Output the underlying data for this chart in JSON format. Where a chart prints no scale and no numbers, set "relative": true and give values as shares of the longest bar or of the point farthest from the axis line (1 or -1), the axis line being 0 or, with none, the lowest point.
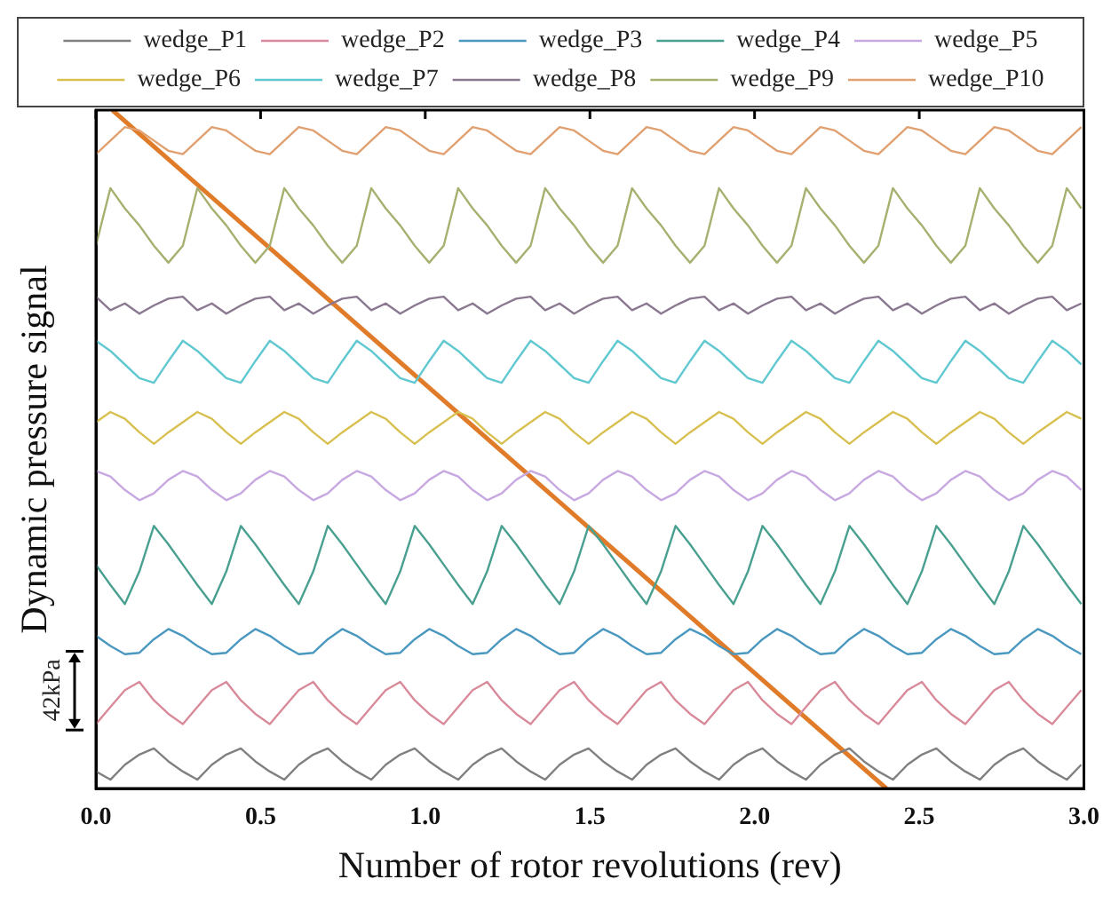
{
  "chart_data": {
    "type": "line",
    "relative": true,
    "xlabel": "Number of rotor revolutions (rev)",
    "ylabel": "Dynamic pressure signal",
    "annotations": [
      "42kPa"
    ],
    "legend": "top",
    "grid": false,
    "marker": "none",
    "line_style": "solid",
    "xlim": [
      0,
      3
    ],
    "xticks": [
      {
        "value": 0,
        "label": "0.0"
      },
      {
        "value": 0.5,
        "label": "0.5"
      },
      {
        "value": 1,
        "label": "1.0"
      },
      {
        "value": 1.5,
        "label": "1.5"
      },
      {
        "value": 2,
        "label": "2.0"
      },
      {
        "value": 2.5,
        "label": "2.5"
      },
      {
        "value": 3,
        "label": "3.0"
      }
    ],
    "x": [
      0,
      0.044,
      0.088,
      0.132,
      0.176,
      0.22,
      0.264,
      0.308,
      0.352,
      0.396,
      0.44,
      0.484,
      0.528,
      0.572,
      0.616,
      0.66,
      0.704,
      0.748,
      0.792,
      0.836,
      0.88,
      0.924,
      0.968,
      1.012,
      1.056,
      1.1,
      1.144,
      1.188,
      1.232,
      1.276,
      1.32,
      1.364,
      1.408,
      1.452,
      1.496,
      1.54,
      1.584,
      1.628,
      1.672,
      1.716,
      1.76,
      1.804,
      1.848,
      1.892,
      1.936,
      1.98,
      2.024,
      2.068,
      2.112,
      2.156,
      2.2,
      2.244,
      2.288,
      2.332,
      2.376,
      2.42,
      2.464,
      2.508,
      2.552,
      2.596,
      2.64,
      2.684,
      2.728,
      2.772,
      2.816,
      2.86,
      2.904,
      2.948,
      2.992
    ],
    "series": [
      {
        "name": "wedge_P1",
        "color": "#808080",
        "values": [
          0.025,
          0.013,
          0.035,
          0.05,
          0.059,
          0.04,
          0.025,
          0.013,
          0.035,
          0.05,
          0.059,
          0.04,
          0.025,
          0.013,
          0.035,
          0.05,
          0.059,
          0.04,
          0.025,
          0.013,
          0.035,
          0.05,
          0.059,
          0.04,
          0.025,
          0.013,
          0.035,
          0.05,
          0.059,
          0.04,
          0.025,
          0.013,
          0.035,
          0.05,
          0.059,
          0.04,
          0.025,
          0.013,
          0.035,
          0.05,
          0.059,
          0.04,
          0.025,
          0.013,
          0.035,
          0.05,
          0.059,
          0.04,
          0.025,
          0.013,
          0.035,
          0.05,
          0.059,
          0.04,
          0.025,
          0.013,
          0.035,
          0.05,
          0.059,
          0.04,
          0.025,
          0.013,
          0.035,
          0.05,
          0.059,
          0.04,
          0.025,
          0.013,
          0.035
        ]
      },
      {
        "name": "wedge_P2",
        "color": "#d98a9a",
        "values": [
          0.095,
          0.12,
          0.145,
          0.157,
          0.13,
          0.11,
          0.095,
          0.12,
          0.145,
          0.157,
          0.13,
          0.11,
          0.095,
          0.12,
          0.145,
          0.157,
          0.13,
          0.11,
          0.095,
          0.12,
          0.145,
          0.157,
          0.13,
          0.11,
          0.095,
          0.12,
          0.145,
          0.157,
          0.13,
          0.11,
          0.095,
          0.12,
          0.145,
          0.157,
          0.13,
          0.11,
          0.095,
          0.12,
          0.145,
          0.157,
          0.13,
          0.11,
          0.095,
          0.12,
          0.145,
          0.157,
          0.13,
          0.11,
          0.095,
          0.12,
          0.145,
          0.157,
          0.13,
          0.11,
          0.095,
          0.12,
          0.145,
          0.157,
          0.13,
          0.11,
          0.095,
          0.12,
          0.145,
          0.157,
          0.13,
          0.11,
          0.095,
          0.12,
          0.145
        ]
      },
      {
        "name": "wedge_P3",
        "color": "#4a98c0",
        "values": [
          0.225,
          0.21,
          0.198,
          0.2,
          0.22,
          0.235,
          0.225,
          0.21,
          0.198,
          0.2,
          0.22,
          0.235,
          0.225,
          0.21,
          0.198,
          0.2,
          0.22,
          0.235,
          0.225,
          0.21,
          0.198,
          0.2,
          0.22,
          0.235,
          0.225,
          0.21,
          0.198,
          0.2,
          0.22,
          0.235,
          0.225,
          0.21,
          0.198,
          0.2,
          0.22,
          0.235,
          0.225,
          0.21,
          0.198,
          0.2,
          0.22,
          0.235,
          0.225,
          0.21,
          0.198,
          0.2,
          0.22,
          0.235,
          0.225,
          0.21,
          0.198,
          0.2,
          0.22,
          0.235,
          0.225,
          0.21,
          0.198,
          0.2,
          0.22,
          0.235,
          0.225,
          0.21,
          0.198,
          0.2,
          0.22,
          0.235,
          0.225,
          0.21,
          0.198
        ]
      },
      {
        "name": "wedge_P4",
        "color": "#4aa090",
        "values": [
          0.33,
          0.3,
          0.272,
          0.32,
          0.387,
          0.36,
          0.33,
          0.3,
          0.272,
          0.32,
          0.387,
          0.36,
          0.33,
          0.3,
          0.272,
          0.32,
          0.387,
          0.36,
          0.33,
          0.3,
          0.272,
          0.32,
          0.387,
          0.36,
          0.33,
          0.3,
          0.272,
          0.32,
          0.387,
          0.36,
          0.33,
          0.3,
          0.272,
          0.32,
          0.387,
          0.36,
          0.33,
          0.3,
          0.272,
          0.32,
          0.387,
          0.36,
          0.33,
          0.3,
          0.272,
          0.32,
          0.387,
          0.36,
          0.33,
          0.3,
          0.272,
          0.32,
          0.387,
          0.36,
          0.33,
          0.3,
          0.272,
          0.32,
          0.387,
          0.36,
          0.33,
          0.3,
          0.272,
          0.32,
          0.387,
          0.36,
          0.33,
          0.3,
          0.272
        ]
      },
      {
        "name": "wedge_P5",
        "color": "#c8a8e0",
        "values": [
          0.468,
          0.46,
          0.44,
          0.425,
          0.435,
          0.455,
          0.468,
          0.46,
          0.44,
          0.425,
          0.435,
          0.455,
          0.468,
          0.46,
          0.44,
          0.425,
          0.435,
          0.455,
          0.468,
          0.46,
          0.44,
          0.425,
          0.435,
          0.455,
          0.468,
          0.46,
          0.44,
          0.425,
          0.435,
          0.455,
          0.468,
          0.46,
          0.44,
          0.425,
          0.435,
          0.455,
          0.468,
          0.46,
          0.44,
          0.425,
          0.435,
          0.455,
          0.468,
          0.46,
          0.44,
          0.425,
          0.435,
          0.455,
          0.468,
          0.46,
          0.44,
          0.425,
          0.435,
          0.455,
          0.468,
          0.46,
          0.44,
          0.425,
          0.435,
          0.455,
          0.468,
          0.46,
          0.44,
          0.425,
          0.435,
          0.455,
          0.468,
          0.46,
          0.44
        ]
      },
      {
        "name": "wedge_P6",
        "color": "#d8c050",
        "values": [
          0.54,
          0.555,
          0.545,
          0.525,
          0.508,
          0.525,
          0.54,
          0.555,
          0.545,
          0.525,
          0.508,
          0.525,
          0.54,
          0.555,
          0.545,
          0.525,
          0.508,
          0.525,
          0.54,
          0.555,
          0.545,
          0.525,
          0.508,
          0.525,
          0.54,
          0.555,
          0.545,
          0.525,
          0.508,
          0.525,
          0.54,
          0.555,
          0.545,
          0.525,
          0.508,
          0.525,
          0.54,
          0.555,
          0.545,
          0.525,
          0.508,
          0.525,
          0.54,
          0.555,
          0.545,
          0.525,
          0.508,
          0.525,
          0.54,
          0.555,
          0.545,
          0.525,
          0.508,
          0.525,
          0.54,
          0.555,
          0.545,
          0.525,
          0.508,
          0.525,
          0.54,
          0.555,
          0.545,
          0.525,
          0.508,
          0.525,
          0.54,
          0.555,
          0.545
        ]
      },
      {
        "name": "wedge_P7",
        "color": "#60c8d0",
        "values": [
          0.66,
          0.645,
          0.625,
          0.605,
          0.598,
          0.63,
          0.66,
          0.645,
          0.625,
          0.605,
          0.598,
          0.63,
          0.66,
          0.645,
          0.625,
          0.605,
          0.598,
          0.63,
          0.66,
          0.645,
          0.625,
          0.605,
          0.598,
          0.63,
          0.66,
          0.645,
          0.625,
          0.605,
          0.598,
          0.63,
          0.66,
          0.645,
          0.625,
          0.605,
          0.598,
          0.63,
          0.66,
          0.645,
          0.625,
          0.605,
          0.598,
          0.63,
          0.66,
          0.645,
          0.625,
          0.605,
          0.598,
          0.63,
          0.66,
          0.645,
          0.625,
          0.605,
          0.598,
          0.63,
          0.66,
          0.645,
          0.625,
          0.605,
          0.598,
          0.63,
          0.66,
          0.645,
          0.625,
          0.605,
          0.598,
          0.63,
          0.66,
          0.645,
          0.625
        ]
      },
      {
        "name": "wedge_P8",
        "color": "#8a7890",
        "values": [
          0.725,
          0.705,
          0.715,
          0.7,
          0.712,
          0.722,
          0.725,
          0.705,
          0.715,
          0.7,
          0.712,
          0.722,
          0.725,
          0.705,
          0.715,
          0.7,
          0.712,
          0.722,
          0.725,
          0.705,
          0.715,
          0.7,
          0.712,
          0.722,
          0.725,
          0.705,
          0.715,
          0.7,
          0.712,
          0.722,
          0.725,
          0.705,
          0.715,
          0.7,
          0.712,
          0.722,
          0.725,
          0.705,
          0.715,
          0.7,
          0.712,
          0.722,
          0.725,
          0.705,
          0.715,
          0.7,
          0.712,
          0.722,
          0.725,
          0.705,
          0.715,
          0.7,
          0.712,
          0.722,
          0.725,
          0.705,
          0.715,
          0.7,
          0.712,
          0.722,
          0.725,
          0.705,
          0.715,
          0.7,
          0.712,
          0.722,
          0.725,
          0.705,
          0.715
        ]
      },
      {
        "name": "wedge_P9",
        "color": "#a8b070",
        "values": [
          0.8,
          0.885,
          0.855,
          0.83,
          0.8,
          0.775,
          0.8,
          0.885,
          0.855,
          0.83,
          0.8,
          0.775,
          0.8,
          0.885,
          0.855,
          0.83,
          0.8,
          0.775,
          0.8,
          0.885,
          0.855,
          0.83,
          0.8,
          0.775,
          0.8,
          0.885,
          0.855,
          0.83,
          0.8,
          0.775,
          0.8,
          0.885,
          0.855,
          0.83,
          0.8,
          0.775,
          0.8,
          0.885,
          0.855,
          0.83,
          0.8,
          0.775,
          0.8,
          0.885,
          0.855,
          0.83,
          0.8,
          0.775,
          0.8,
          0.885,
          0.855,
          0.83,
          0.8,
          0.775,
          0.8,
          0.885,
          0.855,
          0.83,
          0.8,
          0.775,
          0.8,
          0.885,
          0.855,
          0.83,
          0.8,
          0.775,
          0.8,
          0.885,
          0.855
        ]
      },
      {
        "name": "wedge_P10",
        "color": "#e0a070",
        "values": [
          0.935,
          0.955,
          0.975,
          0.97,
          0.955,
          0.94,
          0.935,
          0.955,
          0.975,
          0.97,
          0.955,
          0.94,
          0.935,
          0.955,
          0.975,
          0.97,
          0.955,
          0.94,
          0.935,
          0.955,
          0.975,
          0.97,
          0.955,
          0.94,
          0.935,
          0.955,
          0.975,
          0.97,
          0.955,
          0.94,
          0.935,
          0.955,
          0.975,
          0.97,
          0.955,
          0.94,
          0.935,
          0.955,
          0.975,
          0.97,
          0.955,
          0.94,
          0.935,
          0.955,
          0.975,
          0.97,
          0.955,
          0.94,
          0.935,
          0.955,
          0.975,
          0.97,
          0.955,
          0.94,
          0.935,
          0.955,
          0.975,
          0.97,
          0.955,
          0.94,
          0.935,
          0.955,
          0.975,
          0.97,
          0.955,
          0.94,
          0.935,
          0.955,
          0.975
        ]
      },
      {
        "color": "#e07b2a",
        "x": [
          0.05,
          2.4
        ],
        "values": [
          1,
          0
        ]
      }
    ]
  }
}
